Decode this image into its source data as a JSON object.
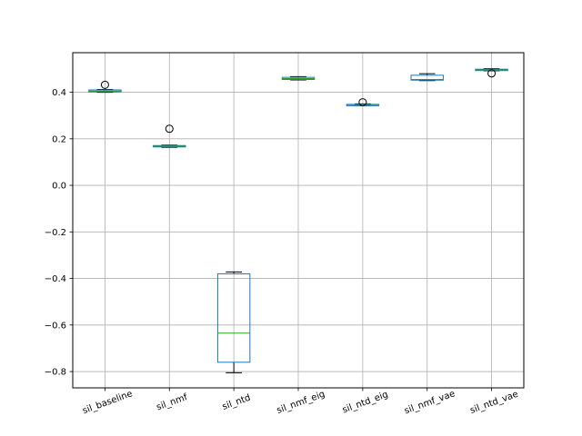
{
  "chart_data": {
    "type": "box",
    "title": "",
    "xlabel": "",
    "ylabel": "",
    "ylim": [
      -0.87,
      0.57
    ],
    "yticks": [
      -0.8,
      -0.6,
      -0.4,
      -0.2,
      0.0,
      0.2,
      0.4
    ],
    "ytick_labels": [
      "−0.8",
      "−0.6",
      "−0.4",
      "−0.2",
      "0.0",
      "0.2",
      "0.4"
    ],
    "grid": true,
    "xtick_rotation_deg": -20,
    "colors": {
      "box": "#1f77b4",
      "median": "#2ca02c",
      "whisker": "#000000",
      "grid": "#b0b0b0",
      "axes": "#000000"
    },
    "categories": [
      "sil_baseline",
      "sil_nmf",
      "sil_ntd",
      "sil_nmf_eig",
      "sil_ntd_eig",
      "sil_nmf_vae",
      "sil_ntd_vae"
    ],
    "boxes": [
      {
        "label": "sil_baseline",
        "whislo": 0.4,
        "q1": 0.402,
        "median": 0.405,
        "q3": 0.41,
        "whishi": 0.412,
        "fliers": [
          0.432
        ]
      },
      {
        "label": "sil_nmf",
        "whislo": 0.163,
        "q1": 0.165,
        "median": 0.168,
        "q3": 0.171,
        "whishi": 0.173,
        "fliers": [
          0.243
        ]
      },
      {
        "label": "sil_ntd",
        "whislo": -0.805,
        "q1": -0.76,
        "median": -0.635,
        "q3": -0.38,
        "whishi": -0.372,
        "fliers": []
      },
      {
        "label": "sil_nmf_eig",
        "whislo": 0.453,
        "q1": 0.455,
        "median": 0.459,
        "q3": 0.464,
        "whishi": 0.467,
        "fliers": []
      },
      {
        "label": "sil_ntd_eig",
        "whislo": 0.342,
        "q1": 0.344,
        "median": 0.346,
        "q3": 0.348,
        "whishi": 0.35,
        "fliers": [
          0.357
        ]
      },
      {
        "label": "sil_nmf_vae",
        "whislo": 0.45,
        "q1": 0.452,
        "median": 0.455,
        "q3": 0.473,
        "whishi": 0.48,
        "fliers": []
      },
      {
        "label": "sil_ntd_vae",
        "whislo": 0.492,
        "q1": 0.494,
        "median": 0.496,
        "q3": 0.499,
        "whishi": 0.501,
        "fliers": [
          0.481
        ]
      }
    ]
  }
}
